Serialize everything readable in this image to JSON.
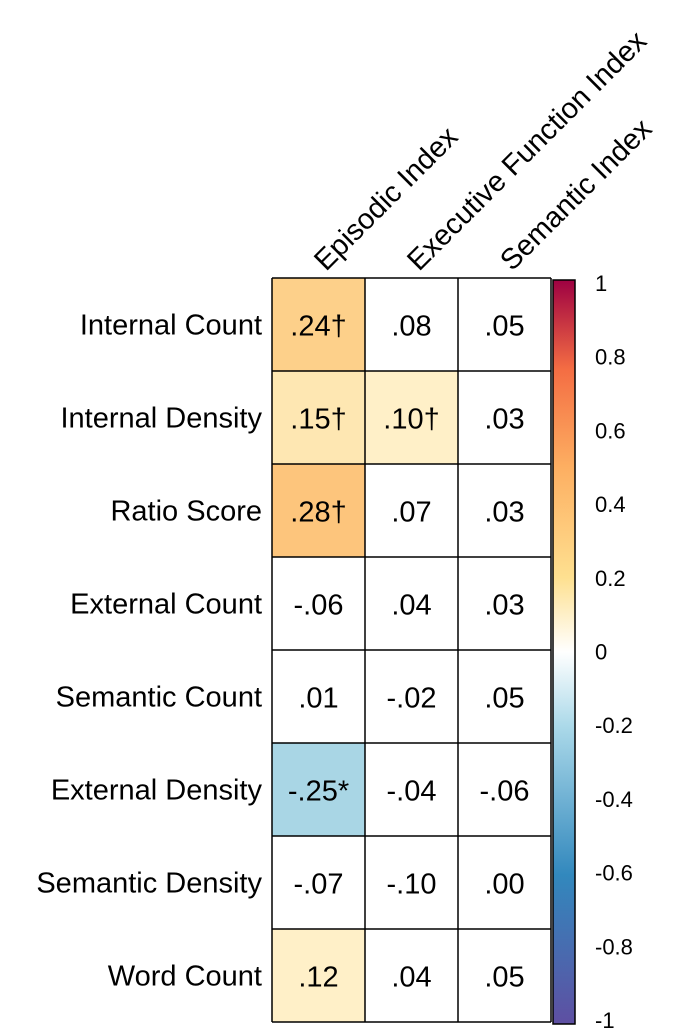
{
  "chart_data": {
    "type": "heatmap",
    "title": "",
    "columns": [
      "Episodic Index",
      "Executive Function Index",
      "Semantic Index"
    ],
    "rows": [
      "Internal Count",
      "Internal Density",
      "Ratio Score",
      "External Count",
      "Semantic Count",
      "External Density",
      "Semantic Density",
      "Word Count"
    ],
    "values": [
      [
        0.24,
        0.08,
        0.05
      ],
      [
        0.15,
        0.1,
        0.03
      ],
      [
        0.28,
        0.07,
        0.03
      ],
      [
        -0.06,
        0.04,
        0.03
      ],
      [
        0.01,
        -0.02,
        0.05
      ],
      [
        -0.25,
        -0.04,
        -0.06
      ],
      [
        -0.07,
        -0.1,
        0.0
      ],
      [
        0.12,
        0.04,
        0.05
      ]
    ],
    "labels": [
      [
        ".24†",
        ".08",
        ".05"
      ],
      [
        ".15†",
        ".10†",
        ".03"
      ],
      [
        ".28†",
        ".07",
        ".03"
      ],
      [
        "-.06",
        ".04",
        ".03"
      ],
      [
        ".01",
        "-.02",
        ".05"
      ],
      [
        "-.25*",
        "-.04",
        "-.06"
      ],
      [
        "-.07",
        "-.10",
        ".00"
      ],
      [
        ".12",
        ".04",
        ".05"
      ]
    ],
    "fills": [
      [
        "#fdd08a",
        "#ffffff",
        "#ffffff"
      ],
      [
        "#fee7b2",
        "#fff0c8",
        "#ffffff"
      ],
      [
        "#fdc57c",
        "#ffffff",
        "#ffffff"
      ],
      [
        "#ffffff",
        "#ffffff",
        "#ffffff"
      ],
      [
        "#ffffff",
        "#ffffff",
        "#ffffff"
      ],
      [
        "#a9d6e5",
        "#ffffff",
        "#ffffff"
      ],
      [
        "#ffffff",
        "#ffffff",
        "#ffffff"
      ],
      [
        "#fff0c8",
        "#ffffff",
        "#ffffff"
      ]
    ],
    "colorbar": {
      "min": -1,
      "max": 1,
      "ticks": [
        1,
        0.8,
        0.6,
        0.4,
        0.2,
        0,
        -0.2,
        -0.4,
        -0.6,
        -0.8,
        -1
      ],
      "tick_labels": [
        "1",
        "0.8",
        "0.6",
        "0.4",
        "0.2",
        "0",
        "-0.2",
        "-0.4",
        "-0.6",
        "-0.8",
        "-1"
      ],
      "colors": [
        "#5e4fa2",
        "#3288bd",
        "#66c2a5",
        "#abdda4",
        "#e6f5fb",
        "#ffffff",
        "#fee08b",
        "#fdae61",
        "#f46d43",
        "#d53e4f",
        "#9e0142"
      ]
    }
  }
}
